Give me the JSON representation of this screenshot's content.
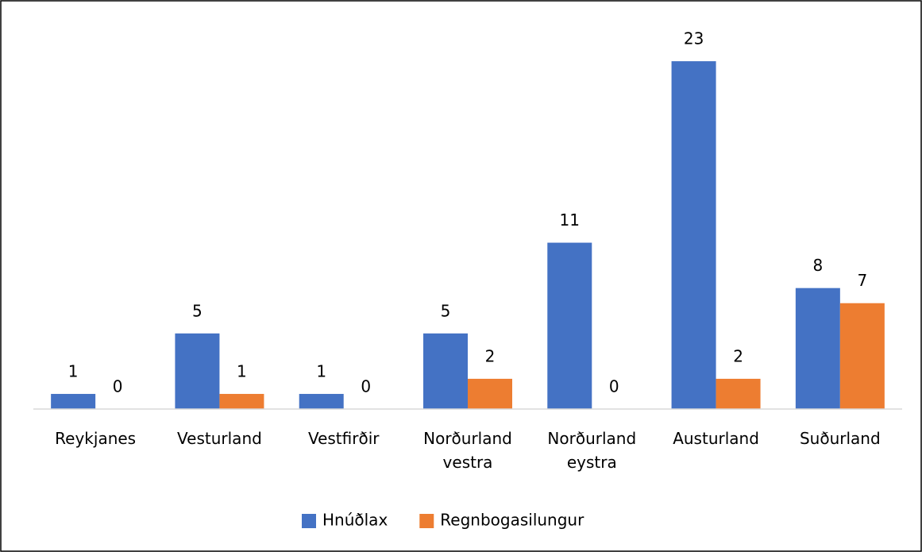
{
  "chart_data": {
    "type": "bar",
    "categories": [
      "Reykjanes",
      "Vesturland",
      "Vestfirðir",
      "Norðurland vestra",
      "Norðurland eystra",
      "Austurland",
      "Suðurland"
    ],
    "series": [
      {
        "name": "Hnúðlax",
        "color": "#4472c4",
        "values": [
          1,
          5,
          1,
          5,
          11,
          23,
          8
        ]
      },
      {
        "name": "Regnbogasilungur",
        "color": "#ed7d31",
        "values": [
          0,
          1,
          0,
          2,
          0,
          2,
          7
        ]
      }
    ],
    "ylim": [
      0,
      25
    ],
    "legend": "bottom"
  }
}
